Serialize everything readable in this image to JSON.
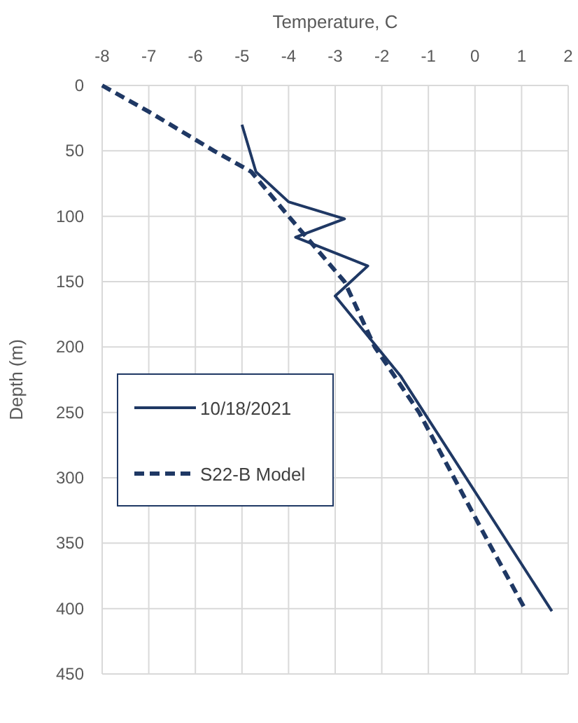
{
  "chart_data": {
    "type": "line",
    "xlabel": "Temperature, C",
    "ylabel": "Depth (m)",
    "xlim": [
      -8,
      2
    ],
    "xticks": [
      -8,
      -7,
      -6,
      -5,
      -4,
      -3,
      -2,
      -1,
      0,
      1,
      2
    ],
    "ylim": [
      450,
      0
    ],
    "yticks": [
      0,
      50,
      100,
      150,
      200,
      250,
      300,
      350,
      400,
      450
    ],
    "grid": true,
    "legend": "left",
    "series": [
      {
        "name": "10/18/2021",
        "color": "#1f3864",
        "line_style": "solid",
        "x": [
          -5.0,
          -4.7,
          -4.0,
          -2.8,
          -3.85,
          -2.3,
          -3.0,
          -1.6,
          1.65
        ],
        "values": [
          30,
          66,
          89,
          102,
          116,
          138,
          161,
          222,
          402
        ]
      },
      {
        "name": "S22-B Model",
        "color": "#1f3864",
        "line_style": "dashed",
        "x": [
          -8,
          -7.0,
          -5.6,
          -4.8,
          -4.0,
          -2.8,
          -2.15,
          -1.2,
          -0.45,
          0.3,
          1.1
        ],
        "values": [
          0,
          20,
          50,
          66,
          100,
          150,
          200,
          250,
          300,
          350,
          402
        ]
      }
    ]
  }
}
